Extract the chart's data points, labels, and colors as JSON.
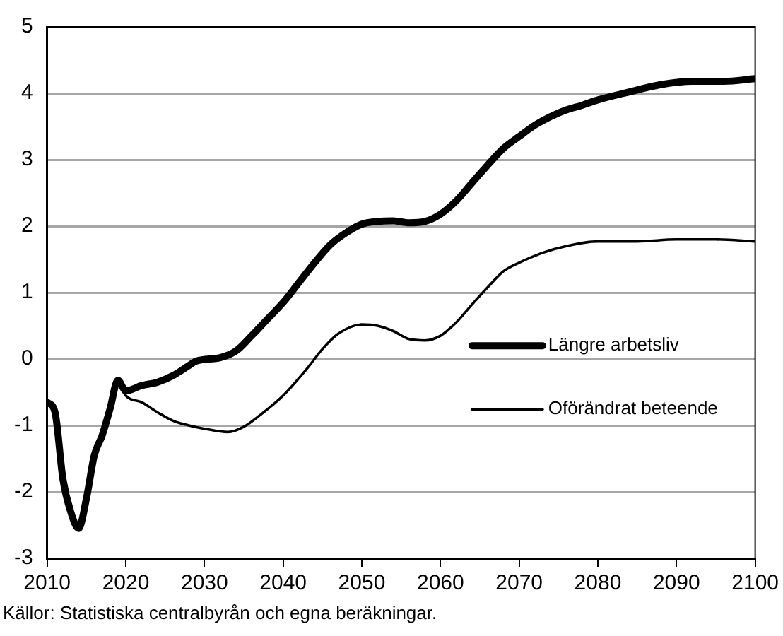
{
  "chart_data": {
    "type": "line",
    "annotations": [
      "Källor: Statistiska centralbyrån och egna beräkningar."
    ],
    "xlim": [
      2010,
      2100
    ],
    "xticks": [
      2010,
      2020,
      2030,
      2040,
      2050,
      2060,
      2070,
      2080,
      2090,
      2100
    ],
    "ylim": [
      -3,
      5
    ],
    "yticks": [
      -3,
      -2,
      -1,
      0,
      1,
      2,
      3,
      4,
      5
    ],
    "grid": "y",
    "legend": "right",
    "marker": "none",
    "line_style": "solid",
    "series": [
      {
        "name": "Längre arbetsliv",
        "color": "#000000",
        "x": [
          2010,
          2011,
          2012,
          2013,
          2014,
          2015,
          2016,
          2017,
          2018,
          2019,
          2020,
          2022,
          2024,
          2026,
          2028,
          2029,
          2032,
          2034,
          2036,
          2038,
          2040,
          2042,
          2044,
          2046,
          2048,
          2050,
          2052,
          2054,
          2056,
          2058,
          2060,
          2062,
          2064,
          2066,
          2068,
          2070,
          2072,
          2074,
          2076,
          2078,
          2080,
          2084,
          2088,
          2092,
          2096,
          2100
        ],
        "values": [
          -0.65,
          -0.8,
          -1.8,
          -2.3,
          -2.55,
          -2.1,
          -1.45,
          -1.15,
          -0.75,
          -0.32,
          -0.48,
          -0.4,
          -0.35,
          -0.25,
          -0.1,
          -0.03,
          0.02,
          0.12,
          0.35,
          0.6,
          0.85,
          1.15,
          1.45,
          1.72,
          1.9,
          2.03,
          2.07,
          2.08,
          2.05,
          2.07,
          2.18,
          2.38,
          2.65,
          2.92,
          3.17,
          3.35,
          3.52,
          3.65,
          3.75,
          3.82,
          3.9,
          4.02,
          4.13,
          4.18,
          4.18,
          4.22
        ]
      },
      {
        "name": "Oförändrat beteende",
        "color": "#000000",
        "x": [
          2019,
          2020,
          2022,
          2024,
          2026,
          2028,
          2030,
          2033,
          2035,
          2037,
          2040,
          2043,
          2045,
          2047,
          2050,
          2052,
          2054,
          2056,
          2058,
          2060,
          2062,
          2064,
          2066,
          2068,
          2070,
          2073,
          2076,
          2080,
          2085,
          2090,
          2095,
          2100
        ],
        "values": [
          -0.32,
          -0.55,
          -0.65,
          -0.8,
          -0.93,
          -1.0,
          -1.05,
          -1.1,
          -1.02,
          -0.85,
          -0.55,
          -0.15,
          0.15,
          0.38,
          0.52,
          0.5,
          0.42,
          0.3,
          0.28,
          0.35,
          0.55,
          0.82,
          1.08,
          1.32,
          1.45,
          1.6,
          1.7,
          1.77,
          1.77,
          1.8,
          1.8,
          1.77
        ]
      }
    ]
  }
}
